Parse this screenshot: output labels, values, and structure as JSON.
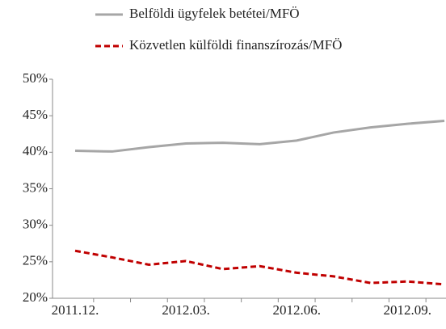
{
  "chart_data": {
    "type": "line",
    "categories": [
      "2011.12.",
      null,
      null,
      "2012.03.",
      null,
      null,
      "2012.06.",
      null,
      null,
      "2012.09.",
      null
    ],
    "series": [
      {
        "name": "Belföldi ügyfelek betétei/MFÖ",
        "color": "#a6a6a6",
        "dash": false,
        "values": [
          40.2,
          40.1,
          40.7,
          41.2,
          41.3,
          41.1,
          41.6,
          42.7,
          43.4,
          43.9,
          44.3
        ]
      },
      {
        "name": "Közvetlen külföldi finanszírozás/MFÖ",
        "color": "#c00000",
        "dash": true,
        "values": [
          26.5,
          25.6,
          24.6,
          25.1,
          24.0,
          24.4,
          23.5,
          23.0,
          22.1,
          22.3,
          21.9
        ]
      }
    ],
    "ylim": [
      20,
      50
    ],
    "yticks": [
      {
        "value": 20,
        "label": "20%"
      },
      {
        "value": 25,
        "label": "25%"
      },
      {
        "value": 30,
        "label": "30%"
      },
      {
        "value": 35,
        "label": "35%"
      },
      {
        "value": 40,
        "label": "40%"
      },
      {
        "value": 45,
        "label": "45%"
      },
      {
        "value": 50,
        "label": "50%"
      }
    ],
    "legend": "top"
  }
}
